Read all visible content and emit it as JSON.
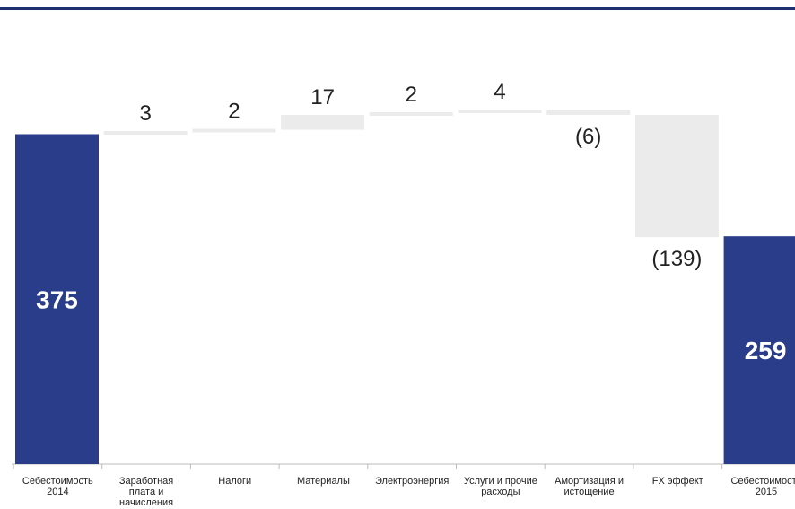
{
  "chart_data": {
    "type": "waterfall",
    "title": "",
    "xlabel": "",
    "ylabel": "",
    "colors": {
      "total": "#2a3d8a",
      "delta": "#ebebeb",
      "axis": "#bbbbbb",
      "rule": "#1f3070"
    },
    "categories": [
      [
        "Себестоимость",
        "2014"
      ],
      [
        "Заработная",
        "плата и",
        "начисления"
      ],
      [
        "Налоги"
      ],
      [
        "Материалы"
      ],
      [
        "Электроэнергия"
      ],
      [
        "Услуги и прочие",
        "расходы"
      ],
      [
        "Амортизация и",
        "истощение"
      ],
      [
        "FX эффект"
      ],
      [
        "Себестоимость",
        "2015"
      ]
    ],
    "steps": [
      {
        "kind": "total",
        "value": 375,
        "label": "375"
      },
      {
        "kind": "delta",
        "value": 3,
        "label": "3"
      },
      {
        "kind": "delta",
        "value": 2,
        "label": "2"
      },
      {
        "kind": "delta",
        "value": 17,
        "label": "17"
      },
      {
        "kind": "delta",
        "value": 2,
        "label": "2"
      },
      {
        "kind": "delta",
        "value": 4,
        "label": "4"
      },
      {
        "kind": "delta",
        "value": -6,
        "label": "(6)"
      },
      {
        "kind": "delta",
        "value": -139,
        "label": "(139)"
      },
      {
        "kind": "total",
        "value": 259,
        "label": "259"
      }
    ],
    "ylim": [
      0,
      405
    ]
  }
}
